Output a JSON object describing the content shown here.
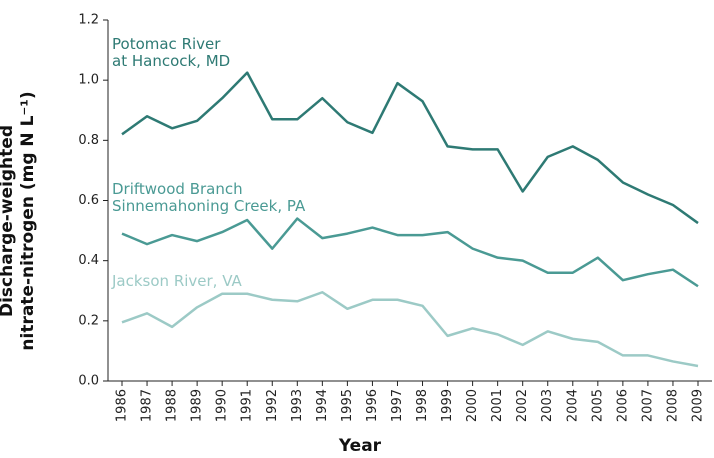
{
  "chart_data": {
    "type": "line",
    "x_label": "Year",
    "y_label": "Discharge-weighted\nnitrate-nitrogen (mg N L⁻¹)",
    "categories": [
      "1986",
      "1987",
      "1988",
      "1989",
      "1990",
      "1991",
      "1992",
      "1993",
      "1994",
      "1995",
      "1996",
      "1997",
      "1998",
      "1999",
      "2000",
      "2001",
      "2002",
      "2003",
      "2004",
      "2005",
      "2006",
      "2007",
      "2008",
      "2009"
    ],
    "ylim": [
      0,
      1.2
    ],
    "yticks": [
      {
        "value": 0,
        "label": "0.0"
      },
      0.2,
      0.4,
      0.6,
      0.8,
      {
        "value": 1,
        "label": "1.0"
      },
      1.2
    ],
    "series": [
      {
        "name": "Potomac River\nat Hancock, MD",
        "color": "#2e7a74",
        "values": [
          0.82,
          0.88,
          0.84,
          0.865,
          0.94,
          1.025,
          0.87,
          0.87,
          0.94,
          0.86,
          0.825,
          0.99,
          0.93,
          0.78,
          0.77,
          0.77,
          0.63,
          0.745,
          0.78,
          0.735,
          0.66,
          0.62,
          0.585,
          0.525
        ]
      },
      {
        "name": "Driftwood Branch\nSinnemahoning Creek, PA",
        "color": "#4a9a94",
        "values": [
          0.49,
          0.455,
          0.485,
          0.465,
          0.495,
          0.535,
          0.44,
          0.54,
          0.475,
          0.49,
          0.51,
          0.485,
          0.485,
          0.495,
          0.44,
          0.41,
          0.4,
          0.36,
          0.36,
          0.41,
          0.335,
          0.355,
          0.37,
          0.315
        ]
      },
      {
        "name": "Jackson River, VA",
        "color": "#9ccac6",
        "values": [
          0.195,
          0.225,
          0.18,
          0.245,
          0.29,
          0.29,
          0.27,
          0.265,
          0.295,
          0.24,
          0.27,
          0.27,
          0.25,
          0.15,
          0.175,
          0.155,
          0.12,
          0.165,
          0.14,
          0.13,
          0.085,
          0.085,
          0.065,
          0.05
        ]
      }
    ]
  }
}
